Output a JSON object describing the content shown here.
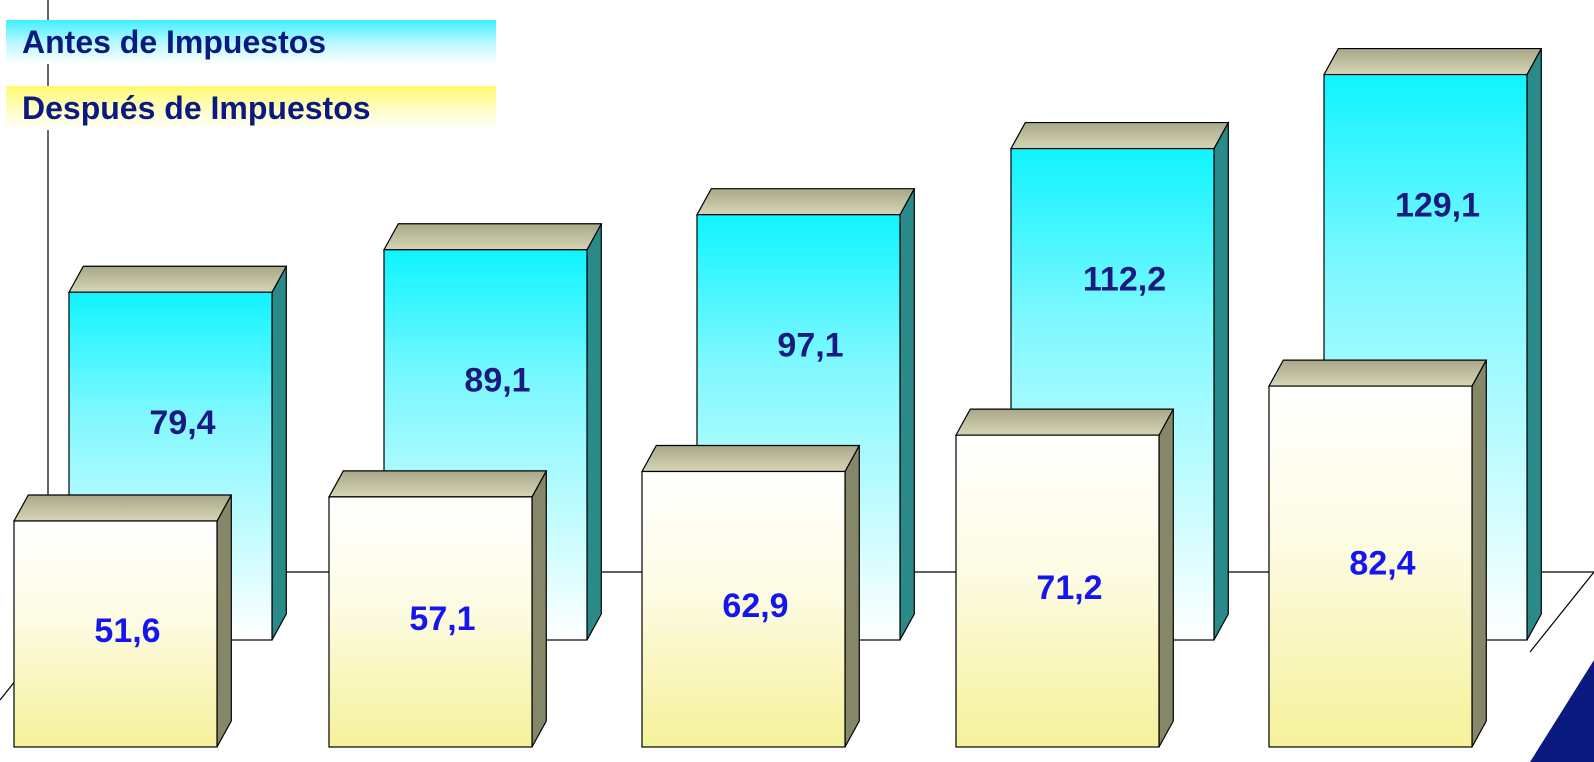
{
  "legend": {
    "before": "Antes de Impuestos",
    "after": "Después de Impuestos"
  },
  "chart_data": {
    "type": "bar",
    "categories": [
      "",
      "",
      "",
      "",
      ""
    ],
    "series": [
      {
        "name": "Antes de Impuestos",
        "values": [
          79.4,
          89.1,
          97.1,
          112.2,
          129.1
        ],
        "labels": [
          "79,4",
          "89,1",
          "97,1",
          "112,2",
          "129,1"
        ]
      },
      {
        "name": "Después de Impuestos",
        "values": [
          51.6,
          57.1,
          62.9,
          71.2,
          82.4
        ],
        "labels": [
          "51,6",
          "57,1",
          "62,9",
          "71,2",
          "82,4"
        ]
      }
    ],
    "title": "",
    "xlabel": "",
    "ylabel": "",
    "grid": false,
    "legend_position": "top-left",
    "colors": {
      "before_face_top": "#0ff4ff",
      "before_face_bottom": "#ffffff",
      "before_side": "#2a8a8a",
      "before_label": "#1a1a80",
      "after_face_top": "#ffffff",
      "after_face_bottom": "#f7f3a0",
      "after_side": "#868668",
      "after_label": "#1515f0",
      "bar_top": "#bfbf96",
      "corner_accent": "#0a1a80"
    }
  }
}
